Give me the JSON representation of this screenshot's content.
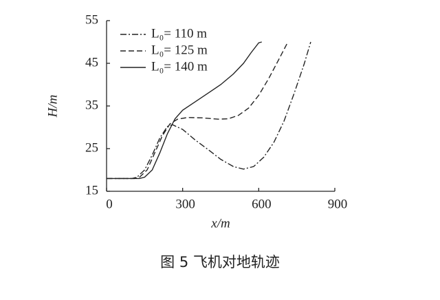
{
  "chart_data": {
    "type": "line",
    "xlabel": "x/m",
    "ylabel": "H/m",
    "caption": "图 5  飞机对地轨迹",
    "xlim": [
      0,
      900
    ],
    "xticks": [
      0,
      300,
      600,
      900
    ],
    "ylim": [
      15,
      55
    ],
    "yticks": [
      15,
      25,
      35,
      45,
      55
    ],
    "legend": "upper-left",
    "series": [
      {
        "name": "L₀= 110 m",
        "color": "#222222",
        "linestyle": "dashdot",
        "x": [
          0,
          100,
          120,
          150,
          180,
          210,
          240,
          260,
          300,
          350,
          400,
          450,
          500,
          540,
          580,
          620,
          660,
          700,
          740,
          780,
          805
        ],
        "values": [
          18,
          18,
          18.3,
          20,
          23.5,
          27.5,
          30.2,
          30.6,
          29.5,
          27,
          24.8,
          22.5,
          20.8,
          20.2,
          20.8,
          23,
          26.5,
          31.5,
          38,
          45,
          50
        ]
      },
      {
        "name": "L₀= 125 m",
        "color": "#222222",
        "linestyle": "dashed",
        "x": [
          0,
          110,
          130,
          160,
          190,
          220,
          250,
          280,
          320,
          380,
          440,
          480,
          520,
          560,
          600,
          640,
          680,
          715
        ],
        "values": [
          18,
          18,
          18.3,
          20,
          24,
          28,
          30.8,
          31.9,
          32.3,
          32.2,
          31.9,
          32,
          32.8,
          34.5,
          37.5,
          41.5,
          46,
          50
        ]
      },
      {
        "name": "L₀= 140 m",
        "color": "#222222",
        "linestyle": "solid",
        "x": [
          0,
          130,
          150,
          180,
          210,
          240,
          270,
          300,
          350,
          400,
          450,
          500,
          540,
          570,
          600,
          612
        ],
        "values": [
          18,
          18,
          18.3,
          20,
          24,
          28.5,
          32,
          34,
          36,
          38,
          40,
          42.5,
          45,
          47.5,
          49.8,
          50
        ]
      }
    ]
  }
}
